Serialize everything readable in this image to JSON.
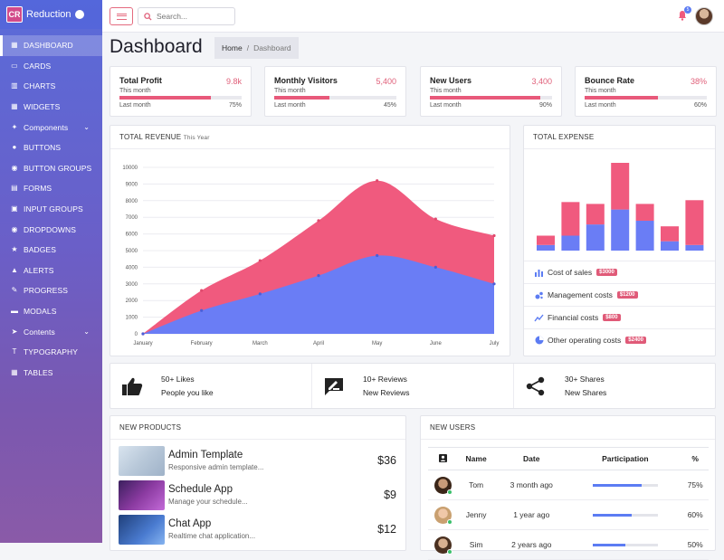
{
  "brand": {
    "logo": "CR",
    "name": "Reduction"
  },
  "sidebar": {
    "items": [
      {
        "label": "DASHBOARD",
        "icon": "dashboard-icon",
        "active": true
      },
      {
        "label": "CARDS",
        "icon": "card-icon"
      },
      {
        "label": "CHARTS",
        "icon": "chart-icon"
      },
      {
        "label": "WIDGETS",
        "icon": "widgets-icon"
      },
      {
        "label": "Components",
        "icon": "puzzle-icon",
        "expandable": true
      },
      {
        "label": "BUTTONS",
        "icon": "button-icon"
      },
      {
        "label": "BUTTON GROUPS",
        "icon": "button-groups-icon"
      },
      {
        "label": "FORMS",
        "icon": "forms-icon"
      },
      {
        "label": "INPUT GROUPS",
        "icon": "input-groups-icon"
      },
      {
        "label": "DROPDOWNS",
        "icon": "dropdown-icon"
      },
      {
        "label": "BADGES",
        "icon": "star-icon"
      },
      {
        "label": "ALERTS",
        "icon": "bell-icon"
      },
      {
        "label": "PROGRESS",
        "icon": "pencil-icon"
      },
      {
        "label": "MODALS",
        "icon": "modal-icon"
      },
      {
        "label": "Contents",
        "icon": "send-icon",
        "expandable": true
      },
      {
        "label": "TYPOGRAPHY",
        "icon": "typography-icon"
      },
      {
        "label": "TABLES",
        "icon": "table-icon"
      }
    ]
  },
  "header": {
    "search_placeholder": "Search...",
    "notification_count": "5"
  },
  "page": {
    "title": "Dashboard",
    "breadcrumb": [
      "Home",
      "/",
      "Dashboard"
    ]
  },
  "stats": [
    {
      "title": "Total Profit",
      "value": "9.8k",
      "sub": "This month",
      "last_label": "Last month",
      "percent_label": "75%",
      "percent": 75
    },
    {
      "title": "Monthly Visitors",
      "value": "5,400",
      "sub": "This month",
      "last_label": "Last month",
      "percent_label": "45%",
      "percent": 45
    },
    {
      "title": "New Users",
      "value": "3,400",
      "sub": "This month",
      "last_label": "Last month",
      "percent_label": "90%",
      "percent": 90
    },
    {
      "title": "Bounce Rate",
      "value": "38%",
      "sub": "This month",
      "last_label": "Last month",
      "percent_label": "60%",
      "percent": 60
    }
  ],
  "revenue": {
    "title": "TOTAL REVENUE",
    "subtitle": "This Year"
  },
  "expense": {
    "title": "TOTAL EXPENSE",
    "items": [
      {
        "label": "Cost of sales",
        "amount": "$3000",
        "icon": "bar-chart-icon"
      },
      {
        "label": "Management costs",
        "amount": "$1200",
        "icon": "bubble-chart-icon"
      },
      {
        "label": "Financial costs",
        "amount": "$800",
        "icon": "line-chart-icon"
      },
      {
        "label": "Other operating costs",
        "amount": "$2400",
        "icon": "pie-chart-icon"
      }
    ]
  },
  "social": [
    {
      "count": "50+ Likes",
      "label": "People you like",
      "icon": "thumbs-up-icon"
    },
    {
      "count": "10+ Reviews",
      "label": "New Reviews",
      "icon": "review-icon"
    },
    {
      "count": "30+ Shares",
      "label": "New Shares",
      "icon": "share-icon"
    }
  ],
  "products": {
    "title": "NEW PRODUCTS",
    "items": [
      {
        "name": "Admin Template",
        "desc": "Responsive admin template...",
        "price": "$36"
      },
      {
        "name": "Schedule App",
        "desc": "Manage your schedule...",
        "price": "$9"
      },
      {
        "name": "Chat App",
        "desc": "Realtime chat application...",
        "price": "$12"
      }
    ]
  },
  "users": {
    "title": "NEW USERS",
    "columns": [
      "",
      "Name",
      "Date",
      "Participation",
      "%"
    ],
    "rows": [
      {
        "name": "Tom",
        "date": "3 month ago",
        "percent_label": "75%",
        "percent": 75
      },
      {
        "name": "Jenny",
        "date": "1 year ago",
        "percent_label": "60%",
        "percent": 60
      },
      {
        "name": "Sim",
        "date": "2 years ago",
        "percent_label": "50%",
        "percent": 50
      }
    ]
  },
  "colors": {
    "pink": "#f05a7e",
    "blue": "#6a7df5",
    "accent": "#e0607a"
  },
  "chart_data": [
    {
      "type": "area",
      "categories": [
        "January",
        "February",
        "March",
        "April",
        "May",
        "June",
        "July"
      ],
      "series": [
        {
          "values": [
            0,
            2600,
            4400,
            6800,
            9200,
            6900,
            5900
          ]
        },
        {
          "values": [
            0,
            1400,
            2400,
            3500,
            4700,
            4000,
            3000
          ]
        }
      ],
      "ylim": [
        0,
        10000
      ],
      "yticks": [
        "0",
        "1000",
        "2000",
        "3000",
        "4000",
        "5000",
        "6000",
        "7000",
        "8000",
        "9000",
        "10000"
      ],
      "grid": true
    },
    {
      "type": "bar",
      "stacked": true,
      "series": [
        {
          "values": [
            5,
            18,
            11,
            25,
            9,
            8,
            24
          ]
        },
        {
          "values": [
            3,
            8,
            14,
            22,
            16,
            5,
            3
          ]
        }
      ]
    }
  ]
}
